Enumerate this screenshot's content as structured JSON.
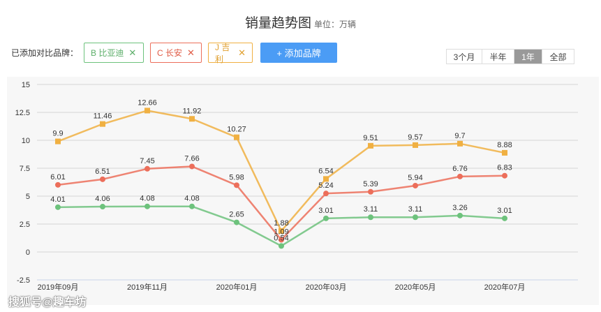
{
  "header": {
    "title": "销量趋势图",
    "unit": "单位：万辆"
  },
  "compare": {
    "label": "已添加对比品牌：",
    "brands": [
      {
        "label": "B 比亚迪",
        "close": "✕"
      },
      {
        "label": "C 长安",
        "close": "✕"
      },
      {
        "label": "J 吉利",
        "close": "✕"
      }
    ],
    "add_label": "+ 添加品牌"
  },
  "range": {
    "options": [
      "3个月",
      "半年",
      "1年",
      "全部"
    ],
    "selected": "1年"
  },
  "watermark": "搜狐号@趣车坊",
  "chart_data": {
    "type": "line",
    "title": "销量趋势图",
    "ylabel": "单位：万辆",
    "ylim": [
      -2.5,
      15
    ],
    "yticks": [
      15,
      12.5,
      10,
      7.5,
      5,
      2.5,
      0,
      -2.5
    ],
    "x": [
      "2019年09月",
      "2019年10月",
      "2019年11月",
      "2019年12月",
      "2020年01月",
      "2020年02月",
      "2020年03月",
      "2020年04月",
      "2020年05月",
      "2020年06月",
      "2020年07月"
    ],
    "xtick_labels": [
      "2019年09月",
      "",
      "2019年11月",
      "",
      "2020年01月",
      "",
      "2020年03月",
      "",
      "2020年05月",
      "",
      "2020年07月"
    ],
    "grid": true,
    "series": [
      {
        "name": "J 吉利",
        "color": "#f0b042",
        "marker": "square",
        "values": [
          9.9,
          11.46,
          12.66,
          11.92,
          10.27,
          1.88,
          6.54,
          9.51,
          9.57,
          9.7,
          8.88
        ]
      },
      {
        "name": "C 长安",
        "color": "#ec6e5a",
        "marker": "circle",
        "values": [
          6.01,
          6.51,
          7.45,
          7.66,
          5.98,
          1.09,
          5.24,
          5.39,
          5.94,
          6.76,
          6.83
        ]
      },
      {
        "name": "B 比亚迪",
        "color": "#6dc27c",
        "marker": "circle",
        "values": [
          4.01,
          4.06,
          4.08,
          4.08,
          2.65,
          0.54,
          3.01,
          3.11,
          3.11,
          3.26,
          3.01
        ]
      }
    ]
  }
}
